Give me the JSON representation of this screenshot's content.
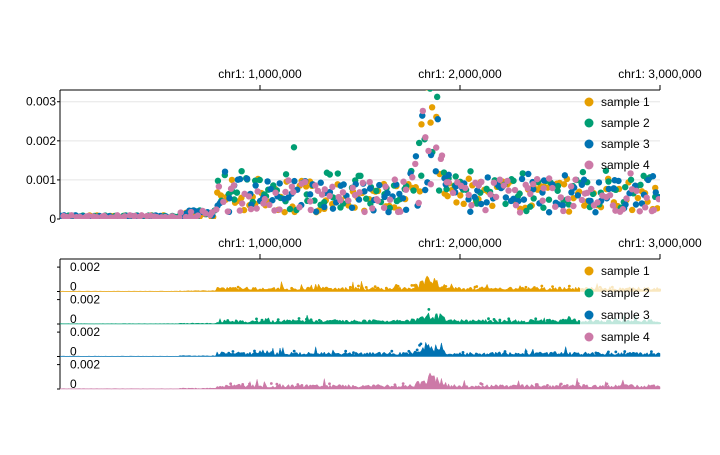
{
  "chart_data": [
    {
      "type": "scatter",
      "x_axis": {
        "position": "top",
        "range": [
          0,
          3000000
        ],
        "ticks": [
          {
            "value": 1000000,
            "label": "chr1: 1,000,000"
          },
          {
            "value": 2000000,
            "label": "chr1: 2,000,000"
          },
          {
            "value": 3000000,
            "label": "chr1: 3,000,000"
          }
        ]
      },
      "y_axis": {
        "range": [
          0,
          0.0033
        ],
        "ticks": [
          {
            "value": 0,
            "label": "0"
          },
          {
            "value": 0.001,
            "label": "0.001"
          },
          {
            "value": 0.002,
            "label": "0.002"
          },
          {
            "value": 0.003,
            "label": "0.003"
          }
        ]
      },
      "grid": true,
      "legend_position": "top-right",
      "series": [
        {
          "name": "sample 1",
          "color": "#E69F00"
        },
        {
          "name": "sample 2",
          "color": "#009E73"
        },
        {
          "name": "sample 3",
          "color": "#0072B2"
        },
        {
          "name": "sample 4",
          "color": "#CC79A7"
        }
      ]
    },
    {
      "type": "area",
      "x_axis": {
        "position": "top",
        "range": [
          0,
          3000000
        ],
        "ticks": [
          {
            "value": 1000000,
            "label": "chr1: 1,000,000"
          },
          {
            "value": 2000000,
            "label": "chr1: 2,000,000"
          },
          {
            "value": 3000000,
            "label": "chr1: 3,000,000"
          }
        ]
      },
      "track_y_range": [
        0,
        0.0025
      ],
      "track_y_ticks": [
        {
          "value": 0,
          "label": "0"
        },
        {
          "value": 0.002,
          "label": "0.002"
        }
      ],
      "legend_position": "top-right",
      "series": [
        {
          "name": "sample 1",
          "color": "#E69F00"
        },
        {
          "name": "sample 2",
          "color": "#009E73"
        },
        {
          "name": "sample 3",
          "color": "#0072B2"
        },
        {
          "name": "sample 4",
          "color": "#CC79A7"
        }
      ]
    }
  ]
}
